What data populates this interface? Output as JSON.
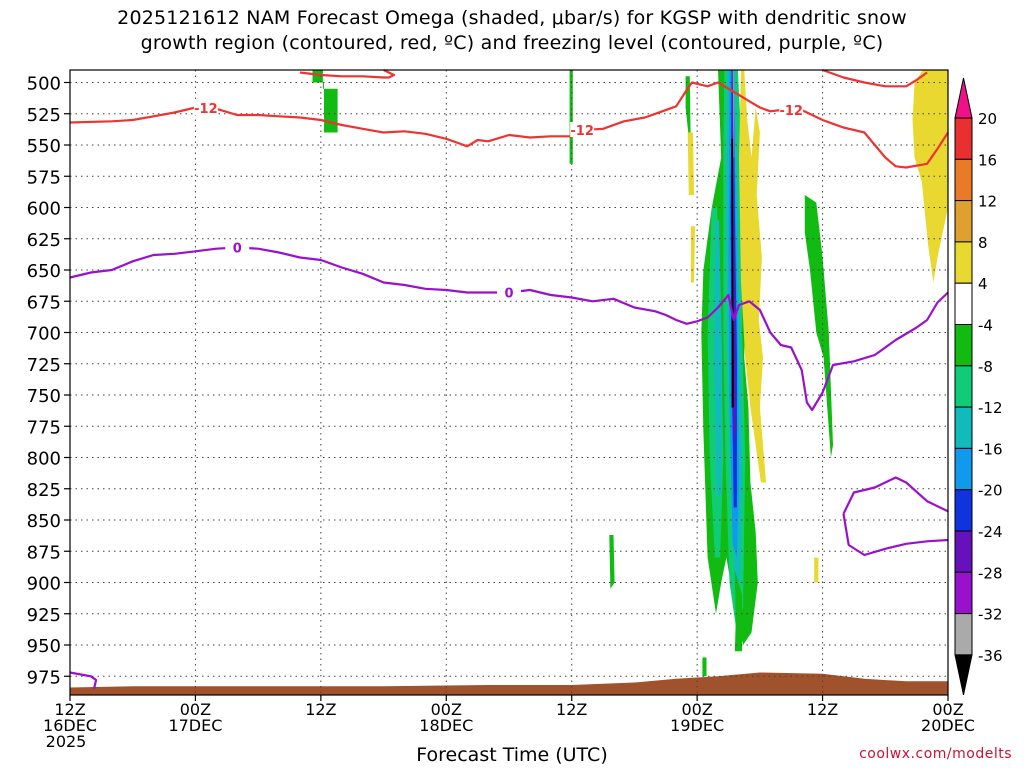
{
  "title": {
    "line1": "2025121612 NAM Forecast Omega (shaded, μbar/s) for KGSP with dendritic snow",
    "line2": "growth region (contoured, red, ºC) and freezing level (contoured, purple, ºC)"
  },
  "xaxis": {
    "label": "Forecast Time (UTC)",
    "ticks": [
      {
        "hour": 0,
        "line1": "12Z",
        "line2": "16DEC",
        "line3": "2025"
      },
      {
        "hour": 12,
        "line1": "00Z",
        "line2": "17DEC",
        "line3": ""
      },
      {
        "hour": 24,
        "line1": "12Z",
        "line2": "",
        "line3": ""
      },
      {
        "hour": 36,
        "line1": "00Z",
        "line2": "18DEC",
        "line3": ""
      },
      {
        "hour": 48,
        "line1": "12Z",
        "line2": "",
        "line3": ""
      },
      {
        "hour": 60,
        "line1": "00Z",
        "line2": "19DEC",
        "line3": ""
      },
      {
        "hour": 72,
        "line1": "12Z",
        "line2": "",
        "line3": ""
      },
      {
        "hour": 84,
        "line1": "00Z",
        "line2": "20DEC",
        "line3": ""
      }
    ]
  },
  "credit": "coolwx.com/modelts",
  "colors": {
    "dgz": "#ee3333",
    "freezing": "#9911cc",
    "ground": "#a0522d",
    "grid": "#444444"
  },
  "chart_data": {
    "type": "heatmap",
    "x_unit": "forecast hour from 2025121612",
    "y_unit": "hPa",
    "xlim": [
      0,
      84
    ],
    "ylim": [
      990,
      490
    ],
    "y_reversed": true,
    "y_ticks": [
      500,
      525,
      550,
      575,
      600,
      625,
      650,
      675,
      700,
      725,
      750,
      775,
      800,
      825,
      850,
      875,
      900,
      925,
      950,
      975
    ],
    "grid": true,
    "colorbar": {
      "levels": [
        "20",
        "16",
        "12",
        "8",
        "4",
        "-4",
        "-8",
        "-12",
        "-16",
        "-20",
        "-24",
        "-28",
        "-32",
        "-36"
      ],
      "colors": [
        "#ee1188",
        "#e83030",
        "#e87a28",
        "#e0a030",
        "#e8d830",
        "#ffffff",
        "#11bb11",
        "#11cc77",
        "#11bbbb",
        "#1199ee",
        "#1133dd",
        "#6611bb",
        "#9911cc",
        "#aaaaaa",
        "#000000"
      ]
    },
    "dgz_contour": {
      "label": "-12",
      "label_at_hours": [
        13,
        49,
        69
      ],
      "points": [
        [
          0,
          532
        ],
        [
          4,
          531
        ],
        [
          6,
          530
        ],
        [
          8,
          527
        ],
        [
          10,
          524
        ],
        [
          12,
          520
        ],
        [
          14,
          521
        ],
        [
          16,
          526
        ],
        [
          18,
          526
        ],
        [
          20,
          527
        ],
        [
          22,
          528
        ],
        [
          24,
          530
        ],
        [
          26,
          534
        ],
        [
          28,
          537
        ],
        [
          30,
          540
        ],
        [
          32,
          539
        ],
        [
          34,
          541
        ],
        [
          36,
          545
        ],
        [
          37,
          548
        ],
        [
          38,
          551
        ],
        [
          39,
          546
        ],
        [
          40,
          547
        ],
        [
          42,
          542
        ],
        [
          44,
          544
        ],
        [
          46,
          543
        ],
        [
          48,
          543
        ],
        [
          49,
          538
        ],
        [
          51,
          537
        ],
        [
          53,
          531
        ],
        [
          55,
          528
        ],
        [
          56,
          525
        ],
        [
          58,
          519
        ],
        [
          59,
          506
        ],
        [
          59.5,
          500
        ],
        [
          61,
          503
        ],
        [
          62,
          500
        ],
        [
          64,
          510
        ],
        [
          65,
          515
        ],
        [
          66,
          520
        ],
        [
          67,
          523
        ],
        [
          68,
          522
        ],
        [
          70,
          522
        ],
        [
          72,
          530
        ],
        [
          73,
          533
        ],
        [
          74,
          536
        ],
        [
          76,
          540
        ],
        [
          77,
          550
        ],
        [
          78,
          560
        ],
        [
          79,
          567
        ],
        [
          80,
          568
        ],
        [
          82,
          565
        ],
        [
          83,
          553
        ],
        [
          84,
          540
        ]
      ]
    },
    "dgz_contour_top": {
      "points": [
        [
          22,
          492
        ],
        [
          24,
          494
        ],
        [
          26,
          495
        ],
        [
          28,
          495
        ],
        [
          30,
          496
        ],
        [
          30.5,
          496
        ],
        [
          31,
          494
        ],
        [
          30,
          490
        ]
      ]
    },
    "dgz_contour_right": {
      "points": [
        [
          72,
          490
        ],
        [
          74,
          496
        ],
        [
          76,
          500
        ],
        [
          78,
          503
        ],
        [
          80,
          503
        ],
        [
          81,
          498
        ],
        [
          82,
          492
        ]
      ]
    },
    "freezing_contour": {
      "label": "0",
      "label_at_hours": [
        16,
        42
      ],
      "points": [
        [
          0,
          656
        ],
        [
          2,
          652
        ],
        [
          4,
          650
        ],
        [
          6,
          643
        ],
        [
          8,
          638
        ],
        [
          10,
          637
        ],
        [
          12,
          635
        ],
        [
          14,
          633
        ],
        [
          16,
          632
        ],
        [
          18,
          633
        ],
        [
          20,
          636
        ],
        [
          22,
          640
        ],
        [
          24,
          642
        ],
        [
          26,
          648
        ],
        [
          28,
          653
        ],
        [
          30,
          660
        ],
        [
          32,
          662
        ],
        [
          34,
          665
        ],
        [
          36,
          666
        ],
        [
          38,
          668
        ],
        [
          40,
          668
        ],
        [
          42,
          668
        ],
        [
          44,
          666
        ],
        [
          46,
          670
        ],
        [
          48,
          672
        ],
        [
          50,
          675
        ],
        [
          52,
          673
        ],
        [
          54,
          680
        ],
        [
          56,
          683
        ],
        [
          57,
          686
        ],
        [
          58,
          690
        ],
        [
          59,
          693
        ],
        [
          60,
          691
        ],
        [
          61,
          688
        ],
        [
          62,
          680
        ],
        [
          63,
          670
        ],
        [
          63.5,
          690
        ],
        [
          64,
          678
        ],
        [
          65,
          675
        ],
        [
          66,
          682
        ],
        [
          67,
          700
        ],
        [
          68,
          710
        ],
        [
          69,
          712
        ],
        [
          70,
          730
        ],
        [
          70.5,
          756
        ],
        [
          71,
          762
        ],
        [
          72,
          748
        ],
        [
          73,
          726
        ],
        [
          75,
          723
        ],
        [
          77,
          718
        ],
        [
          79,
          706
        ],
        [
          81,
          696
        ],
        [
          82,
          690
        ],
        [
          83,
          676
        ],
        [
          84,
          668
        ]
      ]
    },
    "freezing_lower_contour": {
      "points": [
        [
          74,
          845
        ],
        [
          75,
          828
        ],
        [
          77,
          824
        ],
        [
          79,
          816
        ],
        [
          80,
          820
        ],
        [
          82,
          835
        ],
        [
          84,
          843
        ]
      ]
    },
    "freezing_lower_contour2": {
      "points": [
        [
          74,
          845
        ],
        [
          74.5,
          870
        ],
        [
          76,
          878
        ],
        [
          78,
          873
        ],
        [
          80,
          869
        ],
        [
          82,
          867
        ],
        [
          84,
          866
        ]
      ]
    }
  }
}
